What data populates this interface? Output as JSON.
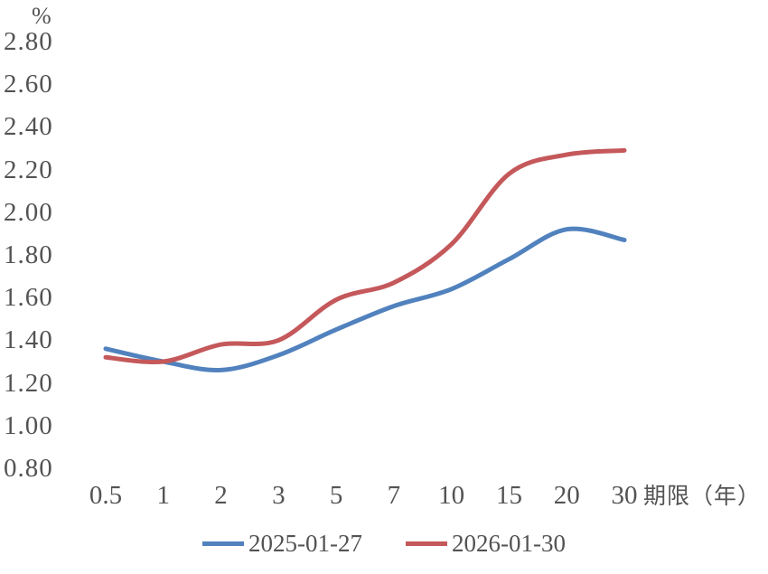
{
  "chart_data": {
    "type": "line",
    "title": "",
    "ylabel": "%",
    "xlabel": "期限（年）",
    "categories": [
      "0.5",
      "1",
      "2",
      "3",
      "5",
      "7",
      "10",
      "15",
      "20",
      "30"
    ],
    "series": [
      {
        "name": "2025-01-27",
        "color": "#5182BE",
        "values": [
          1.36,
          1.3,
          1.26,
          1.33,
          1.45,
          1.56,
          1.64,
          1.78,
          1.92,
          1.87
        ]
      },
      {
        "name": "2026-01-30",
        "color": "#C4585A",
        "values": [
          1.32,
          1.3,
          1.38,
          1.4,
          1.59,
          1.67,
          1.85,
          2.18,
          2.27,
          2.29
        ]
      }
    ],
    "y_ticks": [
      "2.80",
      "2.60",
      "2.40",
      "2.20",
      "2.00",
      "1.80",
      "1.60",
      "1.40",
      "1.20",
      "1.00",
      "0.80"
    ],
    "ylim": [
      0.8,
      2.8
    ],
    "grid": false,
    "axis_lines": false,
    "legend_position": "bottom",
    "smooth_lines": true,
    "text_color": "#535353"
  }
}
